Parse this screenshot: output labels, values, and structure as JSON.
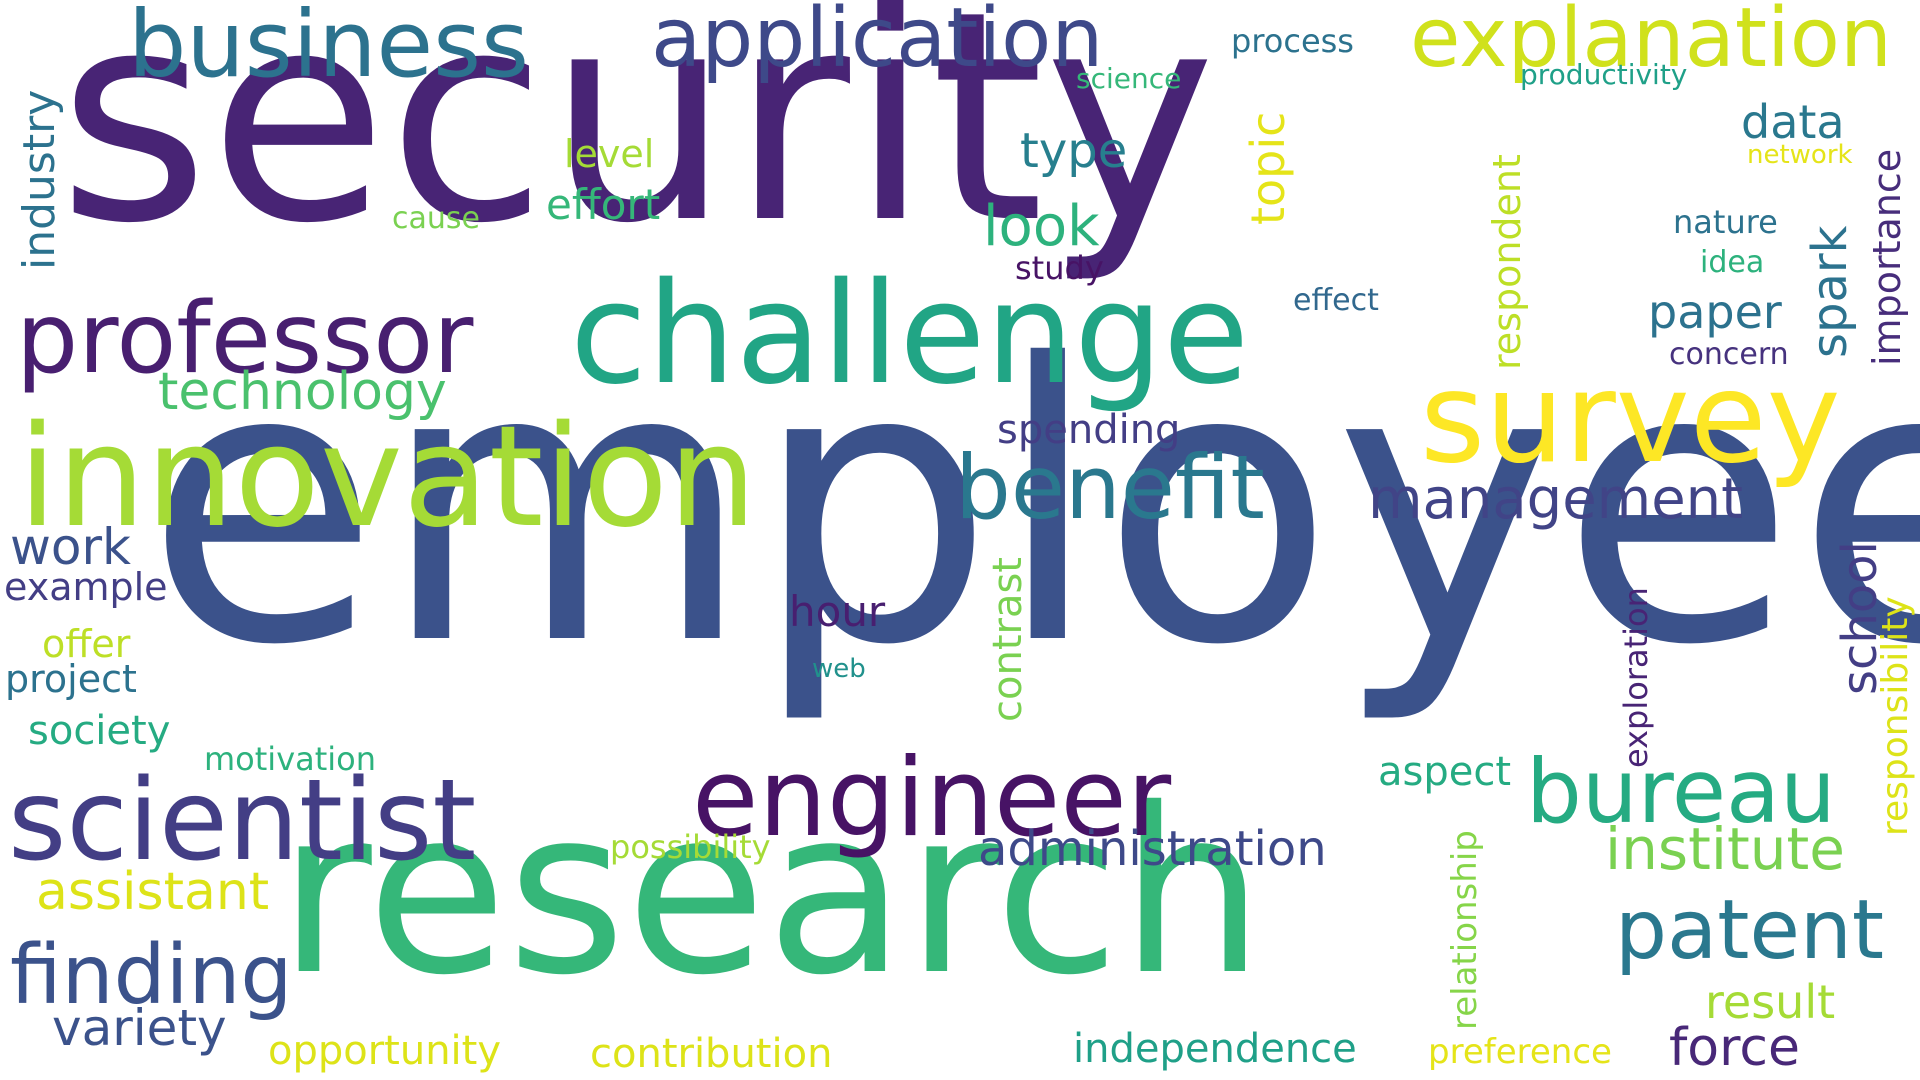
{
  "words": [
    {
      "text": "security",
      "color": "#482475",
      "rotated": false
    },
    {
      "text": "employee",
      "color": "#3b528b",
      "rotated": false
    },
    {
      "text": "research",
      "color": "#35b779",
      "rotated": false
    },
    {
      "text": "challenge",
      "color": "#21a585",
      "rotated": false
    },
    {
      "text": "innovation",
      "color": "#a5db36",
      "rotated": false
    },
    {
      "text": "survey",
      "color": "#fde725",
      "rotated": false
    },
    {
      "text": "scientist",
      "color": "#433e85",
      "rotated": false
    },
    {
      "text": "engineer",
      "color": "#471365",
      "rotated": false
    },
    {
      "text": "professor",
      "color": "#481f70",
      "rotated": false
    },
    {
      "text": "business",
      "color": "#2c728e",
      "rotated": false
    },
    {
      "text": "application",
      "color": "#3e4989",
      "rotated": false
    },
    {
      "text": "explanation",
      "color": "#d0e11c",
      "rotated": false
    },
    {
      "text": "benefit",
      "color": "#2a788e",
      "rotated": false
    },
    {
      "text": "bureau",
      "color": "#25ab82",
      "rotated": false
    },
    {
      "text": "patent",
      "color": "#2a788e",
      "rotated": false
    },
    {
      "text": "finding",
      "color": "#3b528b",
      "rotated": false
    },
    {
      "text": "institute",
      "color": "#7ad151",
      "rotated": false
    },
    {
      "text": "management",
      "color": "#414487",
      "rotated": false
    },
    {
      "text": "administration",
      "color": "#3e4989",
      "rotated": false
    },
    {
      "text": "technology",
      "color": "#4ac16d",
      "rotated": false
    },
    {
      "text": "assistant",
      "color": "#dde318",
      "rotated": false
    },
    {
      "text": "look",
      "color": "#2db27d",
      "rotated": false
    },
    {
      "text": "work",
      "color": "#3b528b",
      "rotated": false
    },
    {
      "text": "variety",
      "color": "#3b528b",
      "rotated": false
    },
    {
      "text": "force",
      "color": "#482878",
      "rotated": false
    },
    {
      "text": "result",
      "color": "#a5db36",
      "rotated": false
    },
    {
      "text": "data",
      "color": "#2a788e",
      "rotated": false
    },
    {
      "text": "type",
      "color": "#277f8e",
      "rotated": false
    },
    {
      "text": "paper",
      "color": "#2c728e",
      "rotated": false
    },
    {
      "text": "spending",
      "color": "#433e85",
      "rotated": false
    },
    {
      "text": "hour",
      "color": "#481f70",
      "rotated": false
    },
    {
      "text": "opportunity",
      "color": "#dde318",
      "rotated": false
    },
    {
      "text": "contribution",
      "color": "#dde318",
      "rotated": false
    },
    {
      "text": "independence",
      "color": "#1fa088",
      "rotated": false
    },
    {
      "text": "aspect",
      "color": "#25ab82",
      "rotated": false
    },
    {
      "text": "level",
      "color": "#a5db36",
      "rotated": false
    },
    {
      "text": "effort",
      "color": "#35b779",
      "rotated": false
    },
    {
      "text": "example",
      "color": "#433e85",
      "rotated": false
    },
    {
      "text": "offer",
      "color": "#bddf26",
      "rotated": false
    },
    {
      "text": "project",
      "color": "#2c728e",
      "rotated": false
    },
    {
      "text": "society",
      "color": "#25ab82",
      "rotated": false
    },
    {
      "text": "motivation",
      "color": "#2db27d",
      "rotated": false
    },
    {
      "text": "possibility",
      "color": "#a5db36",
      "rotated": false
    },
    {
      "text": "preference",
      "color": "#e5e419",
      "rotated": false
    },
    {
      "text": "process",
      "color": "#2c728e",
      "rotated": false
    },
    {
      "text": "science",
      "color": "#35b779",
      "rotated": false
    },
    {
      "text": "productivity",
      "color": "#1fa088",
      "rotated": false
    },
    {
      "text": "network",
      "color": "#e5e419",
      "rotated": false
    },
    {
      "text": "nature",
      "color": "#2c728e",
      "rotated": false
    },
    {
      "text": "idea",
      "color": "#2db27d",
      "rotated": false
    },
    {
      "text": "effect",
      "color": "#31688e",
      "rotated": false
    },
    {
      "text": "concern",
      "color": "#46327e",
      "rotated": false
    },
    {
      "text": "study",
      "color": "#471365",
      "rotated": false
    },
    {
      "text": "cause",
      "color": "#7ad151",
      "rotated": false
    },
    {
      "text": "web",
      "color": "#21918c",
      "rotated": false
    },
    {
      "text": "industry",
      "color": "#2c728e",
      "rotated": true
    },
    {
      "text": "topic",
      "color": "#e5e419",
      "rotated": true
    },
    {
      "text": "respondent",
      "color": "#bddf26",
      "rotated": true
    },
    {
      "text": "spark",
      "color": "#2c728e",
      "rotated": true
    },
    {
      "text": "importance",
      "color": "#472d7b",
      "rotated": true
    },
    {
      "text": "contrast",
      "color": "#7ad151",
      "rotated": true
    },
    {
      "text": "school",
      "color": "#433e85",
      "rotated": true
    },
    {
      "text": "responsibility",
      "color": "#dde318",
      "rotated": true
    },
    {
      "text": "exploration",
      "color": "#482475",
      "rotated": true
    },
    {
      "text": "relationship",
      "color": "#86d549",
      "rotated": true
    }
  ]
}
